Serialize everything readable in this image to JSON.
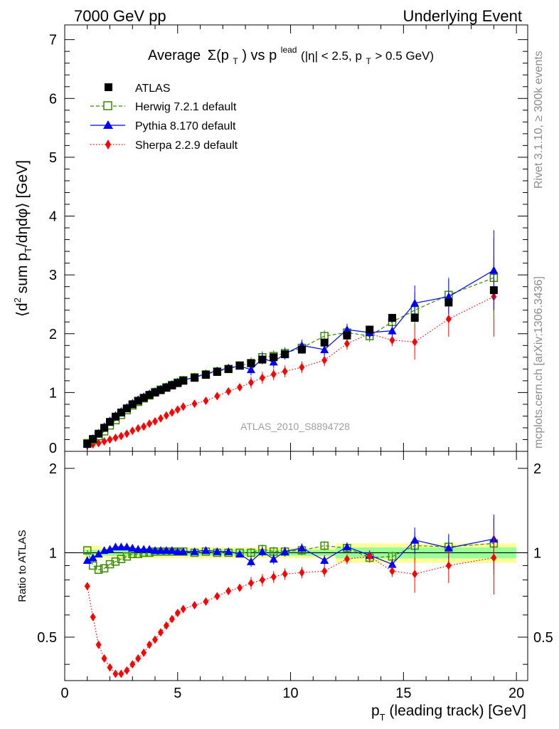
{
  "header": {
    "left": "7000 GeV pp",
    "right": "Underlying Event"
  },
  "side": {
    "rivet": "Rivet 3.1.10, ≥ 300k events",
    "mcplots": "mcplots.cern.ch [arXiv:1306.3436]"
  },
  "watermark": "ATLAS_2010_S8894728",
  "chart_data": [
    {
      "type": "scatter",
      "title": "Average Σ(pT) vs pT lead (|η| < 2.5, pT > 0.5 GeV)",
      "title_parts": {
        "t1": "Average",
        "sigma": "Σ(p",
        "sub_T": "T",
        "t2": ") vs p",
        "sup_lead": "lead",
        "t3": " (|η| < 2.5, p",
        "t4": " > 0.5 GeV)"
      },
      "ylabel": "⟨d² sum pT/dηdφ⟩ [GeV]",
      "ylabel_parts": {
        "a": "⟨d",
        "sup2": "2",
        "b": " sum p",
        "subT": "T",
        "c": "/dηdφ⟩ [GeV]"
      },
      "xlim": [
        0,
        20.5
      ],
      "ylim": [
        0,
        7.25
      ],
      "y_ticks": [
        "0",
        "1",
        "2",
        "3",
        "4",
        "5",
        "6",
        "7"
      ],
      "legend_position": "top-left",
      "x": [
        1.0,
        1.25,
        1.5,
        1.75,
        2.0,
        2.25,
        2.5,
        2.75,
        3.0,
        3.25,
        3.5,
        3.75,
        4.0,
        4.25,
        4.5,
        4.75,
        5.0,
        5.25,
        5.75,
        6.25,
        6.75,
        7.25,
        7.75,
        8.25,
        8.75,
        9.25,
        9.75,
        10.5,
        11.5,
        12.5,
        13.5,
        14.5,
        15.5,
        17.0,
        19.0
      ],
      "series": [
        {
          "name": "ATLAS",
          "marker": "filled-square",
          "color": "#000000",
          "values": [
            0.13,
            0.21,
            0.3,
            0.4,
            0.5,
            0.59,
            0.66,
            0.73,
            0.8,
            0.86,
            0.91,
            0.96,
            1.0,
            1.04,
            1.08,
            1.12,
            1.16,
            1.2,
            1.25,
            1.3,
            1.35,
            1.4,
            1.46,
            1.5,
            1.56,
            1.6,
            1.65,
            1.73,
            1.85,
            1.97,
            2.07,
            2.27,
            2.27,
            2.53,
            2.74
          ]
        },
        {
          "name": "Herwig 7.2.1 default",
          "marker": "open-square",
          "color": "#3a8a00",
          "values": [
            0.14,
            0.19,
            0.26,
            0.34,
            0.44,
            0.53,
            0.62,
            0.7,
            0.78,
            0.84,
            0.9,
            0.95,
            1.01,
            1.05,
            1.09,
            1.13,
            1.17,
            1.21,
            1.26,
            1.31,
            1.36,
            1.4,
            1.46,
            1.5,
            1.6,
            1.62,
            1.67,
            1.76,
            1.96,
            2.02,
            1.96,
            2.2,
            2.4,
            2.66,
            2.95
          ]
        },
        {
          "name": "Pythia 8.170 default",
          "marker": "filled-triangle",
          "color": "#0000ff",
          "values": [
            0.12,
            0.22,
            0.31,
            0.42,
            0.52,
            0.61,
            0.68,
            0.75,
            0.82,
            0.88,
            0.93,
            0.98,
            1.02,
            1.06,
            1.1,
            1.14,
            1.18,
            1.21,
            1.26,
            1.32,
            1.37,
            1.42,
            1.45,
            1.39,
            1.58,
            1.52,
            1.66,
            1.8,
            1.73,
            2.07,
            2.02,
            2.05,
            2.52,
            2.63,
            3.08
          ]
        },
        {
          "name": "Sherpa 2.2.9 default",
          "marker": "filled-diamond",
          "color": "#ff0000",
          "values": [
            0.1,
            0.12,
            0.14,
            0.17,
            0.2,
            0.23,
            0.26,
            0.3,
            0.35,
            0.39,
            0.42,
            0.47,
            0.51,
            0.56,
            0.61,
            0.66,
            0.71,
            0.76,
            0.81,
            0.86,
            0.94,
            1.02,
            1.09,
            1.17,
            1.25,
            1.31,
            1.36,
            1.43,
            1.55,
            1.83,
            2.0,
            1.89,
            1.86,
            2.25,
            2.63
          ]
        }
      ]
    },
    {
      "type": "scatter",
      "title": "",
      "xlabel": "pT (leading track) [GeV]",
      "xlabel_parts": {
        "p": "p",
        "subT": "T",
        "rest": " (leading track) [GeV]"
      },
      "ylabel": "Ratio to ATLAS",
      "xlim": [
        0,
        20.5
      ],
      "ylim": [
        0.35,
        2.3
      ],
      "x_ticks": [
        "0",
        "5",
        "10",
        "15",
        "20"
      ],
      "y_ticks": [
        "0.5",
        "1",
        "2"
      ],
      "reference_line": 1,
      "x": [
        1.0,
        1.25,
        1.5,
        1.75,
        2.0,
        2.25,
        2.5,
        2.75,
        3.0,
        3.25,
        3.5,
        3.75,
        4.0,
        4.25,
        4.5,
        4.75,
        5.0,
        5.25,
        5.75,
        6.25,
        6.75,
        7.25,
        7.75,
        8.25,
        8.75,
        9.25,
        9.75,
        10.5,
        11.5,
        12.5,
        13.5,
        14.5,
        15.5,
        17.0,
        19.0
      ],
      "series": [
        {
          "name": "Herwig 7.2.1 default",
          "color": "#3a8a00",
          "values": [
            1.02,
            0.9,
            0.87,
            0.88,
            0.91,
            0.93,
            0.95,
            0.97,
            0.99,
            0.99,
            1.0,
            1.0,
            1.01,
            1.01,
            1.01,
            1.01,
            1.01,
            1.01,
            1.0,
            1.01,
            1.0,
            1.0,
            1.0,
            1.0,
            1.03,
            1.01,
            1.01,
            1.02,
            1.06,
            1.04,
            0.96,
            0.97,
            1.06,
            1.05,
            1.08
          ]
        },
        {
          "name": "Pythia 8.170 default",
          "color": "#0000ff",
          "values": [
            0.94,
            0.96,
            0.99,
            1.02,
            1.03,
            1.05,
            1.05,
            1.05,
            1.04,
            1.03,
            1.03,
            1.03,
            1.02,
            1.02,
            1.02,
            1.02,
            1.01,
            1.01,
            1.01,
            1.02,
            1.01,
            1.01,
            0.99,
            0.93,
            1.01,
            0.95,
            1.01,
            1.04,
            0.94,
            1.05,
            0.98,
            0.91,
            1.11,
            1.04,
            1.12
          ]
        },
        {
          "name": "Sherpa 2.2.9 default",
          "color": "#ff0000",
          "values": [
            0.76,
            0.59,
            0.47,
            0.42,
            0.39,
            0.37,
            0.37,
            0.38,
            0.4,
            0.42,
            0.44,
            0.47,
            0.49,
            0.52,
            0.55,
            0.58,
            0.61,
            0.63,
            0.65,
            0.67,
            0.7,
            0.73,
            0.75,
            0.78,
            0.8,
            0.82,
            0.84,
            0.85,
            0.86,
            0.95,
            0.97,
            0.86,
            0.84,
            0.9,
            0.96
          ]
        }
      ]
    }
  ]
}
